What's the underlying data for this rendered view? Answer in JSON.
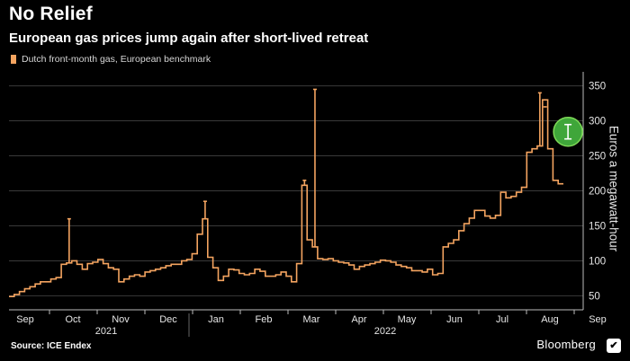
{
  "header": {
    "title": "No Relief",
    "subtitle": "European gas prices jump again after short-lived retreat"
  },
  "footer": {
    "source": "Source: ICE Endex",
    "brand": "Bloomberg",
    "brand_mark": "✔"
  },
  "colors": {
    "background": "#000000",
    "series": "#f4a460",
    "gridline": "#3a3a3a",
    "annotation_circle": "#3fa63a"
  },
  "chart_data": {
    "type": "line",
    "series_type": "ohlc",
    "series": [
      {
        "name": "Dutch front-month gas, European benchmark",
        "values": [
          49,
          52,
          56,
          60,
          63,
          67,
          70,
          70,
          74,
          76,
          95,
          97,
          100,
          95,
          88,
          96,
          98,
          102,
          96,
          90,
          88,
          70,
          74,
          78,
          80,
          78,
          84,
          86,
          88,
          90,
          93,
          95,
          95,
          100,
          102,
          110,
          138,
          160,
          105,
          90,
          72,
          78,
          88,
          87,
          82,
          80,
          82,
          88,
          85,
          78,
          78,
          80,
          84,
          78,
          70,
          96,
          208,
          130,
          120,
          103,
          102,
          103,
          100,
          98,
          97,
          94,
          88,
          92,
          94,
          96,
          98,
          101,
          100,
          98,
          94,
          92,
          90,
          86,
          86,
          84,
          88,
          80,
          82,
          120,
          125,
          130,
          143,
          153,
          161,
          172,
          172,
          164,
          161,
          165,
          198,
          190,
          192,
          198,
          205,
          255,
          260,
          264,
          330,
          260,
          215,
          210
        ]
      }
    ],
    "spikes": [
      {
        "index": 11,
        "high": 160
      },
      {
        "index": 37,
        "high": 185
      },
      {
        "index": 56,
        "high": 215
      },
      {
        "index": 58,
        "high": 345
      },
      {
        "index": 101,
        "high": 340
      },
      {
        "index": 102,
        "high": 320
      }
    ],
    "y_axis": {
      "label": "Euros a megawatt-hour",
      "ticks": [
        50,
        100,
        150,
        200,
        250,
        300,
        350
      ],
      "range": [
        30,
        370
      ],
      "position": "right"
    },
    "x_axis": {
      "months": [
        "Sep",
        "Oct",
        "Nov",
        "Dec",
        "Jan",
        "Feb",
        "Mar",
        "Apr",
        "May",
        "Jun",
        "Jul",
        "Aug",
        "Sep"
      ],
      "years": [
        "2021",
        "2022"
      ]
    },
    "legend": {
      "label": "Dutch front-month gas, European benchmark",
      "position": "top-left"
    },
    "grid": true
  }
}
